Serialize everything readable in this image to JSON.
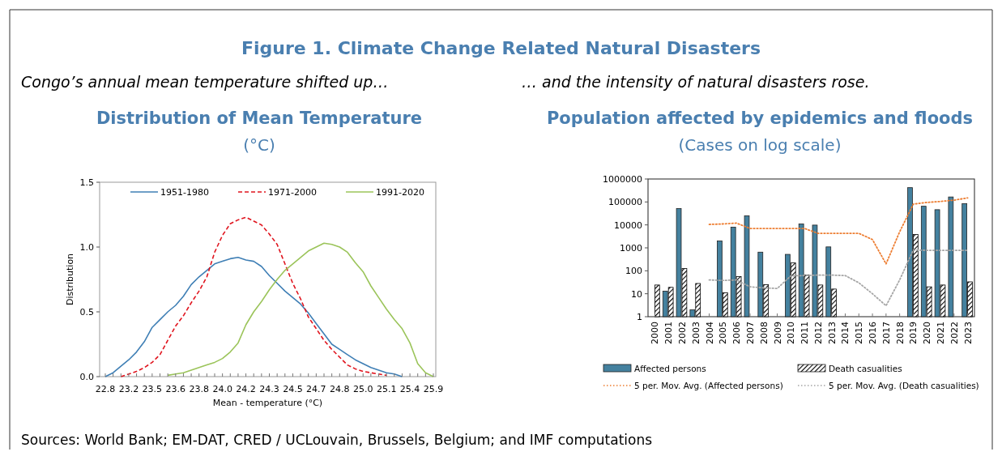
{
  "chart_data": [
    {
      "type": "line",
      "title": "Distribution of Mean Temperature",
      "subtitle": "(°C)",
      "xlabel": "Mean - temperature (°C)",
      "ylabel": "Distribution",
      "annotations": [
        "Figure 1. Climate Change Related Natural Disasters",
        "Congo’s annual mean temperature shifted up…",
        "Sources: World Bank; EM-DAT, CRED / UCLouvain, Brussels, Belgium; and IMF computations"
      ],
      "categories": [
        "22.8",
        null,
        null,
        "23.2",
        null,
        null,
        "23.5",
        null,
        null,
        "23.6",
        null,
        null,
        "23.8",
        null,
        null,
        "24.0",
        null,
        null,
        "24.2",
        null,
        null,
        "24.3",
        null,
        null,
        "24.5",
        null,
        null,
        "24.7",
        null,
        null,
        "24.8",
        null,
        null,
        "25.0",
        null,
        null,
        "25.1",
        null,
        null,
        "25.4",
        null,
        null,
        "25.9"
      ],
      "ylim": [
        0,
        1.5
      ],
      "yticks": [
        {
          "value": 0,
          "label": "0.0"
        },
        {
          "value": 0.5,
          "label": "0.5"
        },
        {
          "value": 1,
          "label": "1.0"
        },
        {
          "value": 1.5,
          "label": "1.5"
        }
      ],
      "legend": "top",
      "marker": "none",
      "series": [
        {
          "name": "1951-1980",
          "color": "#3f7fb5",
          "line_style": "solid",
          "values": [
            0,
            0.03,
            0.08,
            0.13,
            0.19,
            0.27,
            0.38,
            0.44,
            0.5,
            0.55,
            0.62,
            0.71,
            0.77,
            0.82,
            0.87,
            0.89,
            0.91,
            0.92,
            0.9,
            0.89,
            0.85,
            0.78,
            0.72,
            0.66,
            0.61,
            0.56,
            0.49,
            0.41,
            0.33,
            0.25,
            0.21,
            0.17,
            0.13,
            0.1,
            0.07,
            0.05,
            0.03,
            0.02,
            0,
            null,
            null,
            null,
            null
          ]
        },
        {
          "name": "1971-2000",
          "color": "#e0141e",
          "line_style": "dashed",
          "values": [
            null,
            null,
            0,
            0.02,
            0.04,
            0.07,
            0.11,
            0.17,
            0.28,
            0.39,
            0.47,
            0.57,
            0.66,
            0.77,
            0.96,
            1.09,
            1.18,
            1.21,
            1.23,
            1.2,
            1.17,
            1.1,
            1.02,
            0.87,
            0.72,
            0.6,
            0.46,
            0.37,
            0.28,
            0.21,
            0.15,
            0.09,
            0.06,
            0.04,
            0.03,
            0.02,
            0.01,
            null,
            null,
            null,
            null,
            null,
            null
          ]
        },
        {
          "name": "1991-2020",
          "color": "#9bc45a",
          "line_style": "solid",
          "values": [
            null,
            null,
            null,
            null,
            null,
            null,
            null,
            null,
            0.01,
            0.02,
            0.03,
            0.05,
            0.07,
            0.09,
            0.11,
            0.14,
            0.19,
            0.26,
            0.4,
            0.5,
            0.58,
            0.67,
            0.75,
            0.82,
            0.87,
            0.92,
            0.97,
            1,
            1.03,
            1.02,
            1,
            0.96,
            0.88,
            0.81,
            0.7,
            0.61,
            0.52,
            0.44,
            0.37,
            0.26,
            0.1,
            0.03,
            0
          ]
        }
      ]
    },
    {
      "type": "bar",
      "title": "Population affected by epidemics and floods",
      "subtitle": "(Cases on log scale)",
      "annotations": [
        "… and the intensity of natural disasters rose."
      ],
      "categories": [
        "2000",
        "2001",
        "2002",
        "2003",
        "2004",
        "2005",
        "2006",
        "2007",
        "2008",
        "2009",
        "2010",
        "2011",
        "2012",
        "2013",
        "2014",
        "2015",
        "2016",
        "2017",
        "2018",
        "2019",
        "2020",
        "2021",
        "2022",
        "2023"
      ],
      "log": "y",
      "ylim": [
        1,
        1000000
      ],
      "yticks": [
        1,
        10,
        100,
        1000,
        10000,
        100000,
        1000000
      ],
      "legend": "bottom",
      "series": [
        {
          "name": "Affected persons",
          "color": "#44819f",
          "values": [
            null,
            13,
            52000,
            2,
            null,
            2000,
            8000,
            25000,
            650,
            null,
            520,
            11000,
            9800,
            1100,
            null,
            null,
            null,
            null,
            null,
            420000,
            65000,
            46000,
            165000,
            85000
          ]
        },
        {
          "name": "Death casualities",
          "color": "#000000",
          "values": [
            24,
            19,
            125,
            28,
            null,
            11,
            56,
            null,
            25,
            null,
            220,
            65,
            24,
            16,
            null,
            null,
            null,
            null,
            null,
            3800,
            20,
            24,
            null,
            33
          ]
        },
        {
          "name": "5 per. Mov. Avg. (Affected persons)",
          "type": "line",
          "line_style": "dotted",
          "marker": "none",
          "color": "#ed7d31",
          "values": [
            null,
            null,
            null,
            null,
            10500,
            11000,
            12000,
            7000,
            7000,
            7000,
            7000,
            7000,
            4300,
            4300,
            4300,
            4300,
            2300,
            200,
            5000,
            80000,
            95000,
            105000,
            120000,
            150000
          ]
        },
        {
          "name": "5 per. Mov. Avg. (Death casualities)",
          "type": "line",
          "line_style": "dotted",
          "marker": "none",
          "color": "#a5a5a5",
          "values": [
            null,
            null,
            null,
            null,
            40,
            38,
            40,
            20,
            18,
            17,
            60,
            62,
            65,
            65,
            62,
            30,
            10,
            3,
            40,
            800,
            780,
            780,
            780,
            780
          ]
        }
      ]
    }
  ]
}
